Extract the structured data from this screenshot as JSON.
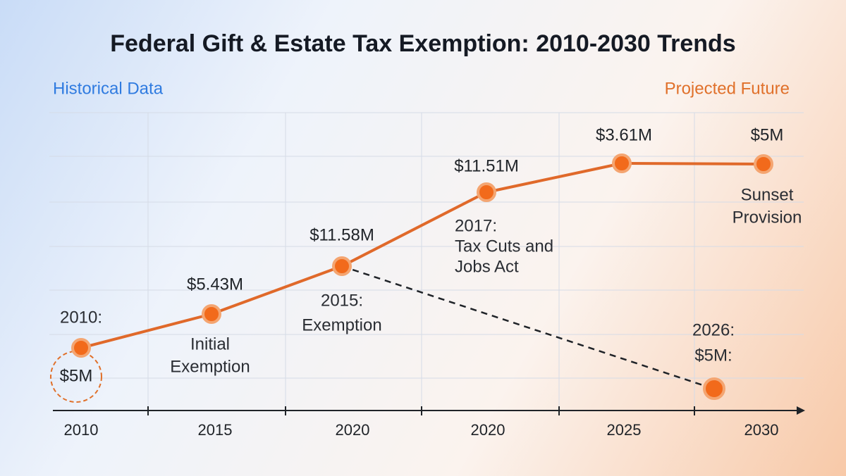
{
  "title": "Federal Gift & Estate Tax Exemption: 2010-2030 Trends",
  "historical_label": "Historical Data",
  "projected_label": "Projected Future",
  "x_axis_labels": [
    "2010",
    "2015",
    "2020",
    "2020",
    "2025",
    "2030"
  ],
  "points": [
    {
      "label": "$5M",
      "note": [
        "2010:"
      ]
    },
    {
      "label": "$5.43M",
      "note": [
        "Initial",
        "Exemption"
      ]
    },
    {
      "label": "$11.58M",
      "note": [
        "2015:",
        "Exemption"
      ]
    },
    {
      "label": "$11.51M",
      "note": [
        "2017:",
        "Tax Cuts and",
        "Jobs Act"
      ]
    },
    {
      "label": "$3.61M",
      "note": []
    },
    {
      "label": "$5M",
      "note": [
        "Sunset",
        "Provision"
      ]
    }
  ],
  "branch_point": {
    "note": [
      "2026:",
      "$5M:"
    ]
  }
}
